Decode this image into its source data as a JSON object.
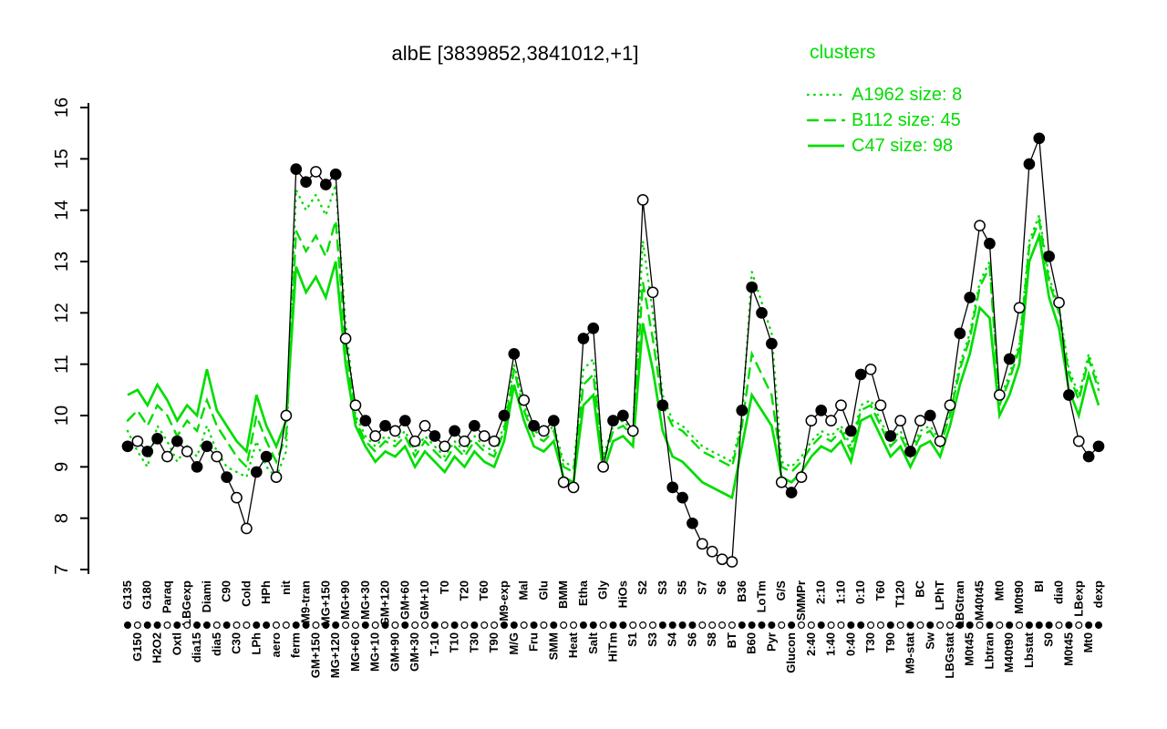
{
  "title": "albE [3839852,3841012,+1]",
  "colors": {
    "cluster_green": "#00dd00",
    "gene_black": "#000000",
    "background": "#ffffff"
  },
  "legend": {
    "title": "clusters",
    "position": "top-right",
    "entries": [
      {
        "label": "A1962 size: 8",
        "style": "dotted"
      },
      {
        "label": "B112 size: 45",
        "style": "dashed"
      },
      {
        "label": "C47 size: 98",
        "style": "solid"
      }
    ]
  },
  "chart_data": {
    "type": "line",
    "title": "albE [3839852,3841012,+1]",
    "xlabel": "",
    "ylabel": "",
    "ylim": [
      7,
      16
    ],
    "yticks": [
      7,
      8,
      9,
      10,
      11,
      12,
      13,
      14,
      15,
      16
    ],
    "grid": false,
    "legend_position": "top-right",
    "categories": [
      "G135",
      "G150",
      "G180",
      "H2O2",
      "Paraq",
      "Oxtl",
      "LBGexp",
      "dia15",
      "Diami",
      "dia5",
      "C90",
      "C30",
      "Cold",
      "LPh",
      "HPh",
      "aero",
      "nit",
      "ferm",
      "M9-tran",
      "GM+150",
      "MG+150",
      "MG+120",
      "MG+90",
      "MG+60",
      "MG+30",
      "MG+10",
      "GM+120",
      "GM+90",
      "GM+60",
      "GM+30",
      "GM+10",
      "T-10",
      "T0",
      "T10",
      "T20",
      "T30",
      "T60",
      "T90",
      "M9-exp",
      "M/G",
      "Mal",
      "Fru",
      "Glu",
      "SMM",
      "BMM",
      "Heat",
      "Etha",
      "Salt",
      "Gly",
      "HiTm",
      "HiOs",
      "S1",
      "S2",
      "S3",
      "S3",
      "S4",
      "S5",
      "S6",
      "S7",
      "S8",
      "S6",
      "BT",
      "B36",
      "B60",
      "LoTm",
      "Pyr",
      "G/S",
      "Glucon",
      "SMMPr",
      "2:40",
      "2:10",
      "1:40",
      "1:10",
      "0:40",
      "0:10",
      "T30",
      "T60",
      "T90",
      "T120",
      "M9-stat",
      "BC",
      "Sw",
      "LPhT",
      "LBGstat",
      "LBGtran",
      "M0t45",
      "M40t45",
      "Lbtran",
      "Mt0",
      "M40t90",
      "M0t90",
      "Lbstat",
      "BI",
      "S0",
      "dia0",
      "M0t45",
      "LBexp",
      "Mt0",
      "dexp"
    ],
    "marker_filled": [
      1,
      0,
      1,
      1,
      0,
      1,
      0,
      1,
      1,
      0,
      1,
      0,
      0,
      1,
      1,
      0,
      0,
      1,
      1,
      0,
      1,
      1,
      0,
      0,
      1,
      0,
      1,
      0,
      1,
      0,
      0,
      1,
      0,
      1,
      0,
      1,
      0,
      0,
      1,
      1,
      0,
      1,
      0,
      1,
      0,
      0,
      1,
      1,
      0,
      1,
      1,
      0,
      0,
      0,
      1,
      1,
      1,
      1,
      0,
      0,
      0,
      0,
      1,
      1,
      1,
      1,
      0,
      1,
      0,
      0,
      1,
      0,
      0,
      1,
      1,
      0,
      0,
      1,
      0,
      1,
      0,
      1,
      0,
      0,
      1,
      1,
      0,
      1,
      0,
      1,
      0,
      1,
      1,
      1,
      0,
      1,
      0,
      1,
      1
    ],
    "series": [
      {
        "name": "albE",
        "role": "gene",
        "color": "#000000",
        "style": "solid",
        "line_width": 1.3,
        "markers": true,
        "values": [
          9.4,
          9.5,
          9.3,
          9.55,
          9.2,
          9.5,
          9.3,
          9.0,
          9.4,
          9.2,
          8.8,
          8.4,
          7.8,
          8.9,
          9.2,
          8.8,
          10.0,
          14.8,
          14.55,
          14.75,
          14.5,
          14.7,
          11.5,
          10.2,
          9.9,
          9.6,
          9.8,
          9.7,
          9.9,
          9.5,
          9.8,
          9.6,
          9.4,
          9.7,
          9.5,
          9.8,
          9.6,
          9.5,
          10.0,
          11.2,
          10.3,
          9.8,
          9.7,
          9.9,
          8.7,
          8.6,
          11.5,
          11.7,
          9.0,
          9.9,
          10.0,
          9.7,
          14.2,
          12.4,
          10.2,
          8.6,
          8.4,
          7.9,
          7.5,
          7.35,
          7.2,
          7.15,
          10.1,
          12.5,
          12.0,
          11.4,
          8.7,
          8.5,
          8.8,
          9.9,
          10.1,
          9.9,
          10.2,
          9.7,
          10.8,
          10.9,
          10.2,
          9.6,
          9.9,
          9.3,
          9.9,
          10.0,
          9.5,
          10.2,
          11.6,
          12.3,
          13.7,
          13.35,
          10.4,
          11.1,
          12.1,
          14.9,
          15.4,
          13.1,
          12.2,
          10.4,
          9.5,
          9.2,
          9.4
        ]
      },
      {
        "name": "A1962",
        "size": 8,
        "color": "#00dd00",
        "style": "dotted",
        "line_width": 2.4,
        "markers": false,
        "values": [
          9.7,
          9.3,
          9.0,
          9.8,
          9.5,
          9.1,
          9.4,
          9.2,
          9.8,
          9.3,
          9.0,
          8.9,
          8.8,
          9.5,
          9.0,
          8.8,
          9.3,
          14.4,
          14.0,
          14.3,
          13.9,
          14.5,
          11.8,
          10.0,
          9.6,
          9.4,
          9.6,
          9.5,
          9.7,
          9.3,
          9.6,
          9.4,
          9.2,
          9.5,
          9.3,
          9.6,
          9.4,
          9.3,
          9.8,
          11.0,
          10.2,
          9.7,
          9.6,
          9.8,
          9.1,
          9.0,
          10.9,
          11.1,
          9.2,
          9.8,
          9.9,
          9.7,
          13.4,
          12.0,
          10.4,
          9.9,
          9.8,
          9.6,
          9.4,
          9.3,
          9.2,
          9.1,
          9.9,
          12.8,
          12.2,
          11.6,
          9.1,
          9.0,
          9.2,
          9.5,
          9.7,
          9.6,
          9.8,
          9.4,
          10.2,
          10.3,
          9.9,
          9.5,
          9.7,
          9.3,
          9.7,
          9.8,
          9.5,
          10.1,
          11.0,
          11.6,
          12.6,
          13.0,
          10.3,
          10.8,
          11.4,
          13.4,
          13.9,
          12.7,
          12.1,
          10.9,
          10.4,
          11.2,
          10.6
        ]
      },
      {
        "name": "B112",
        "size": 45,
        "color": "#00dd00",
        "style": "dashed",
        "line_width": 2.4,
        "markers": false,
        "values": [
          9.9,
          10.1,
          9.8,
          10.2,
          10.0,
          9.6,
          9.9,
          9.7,
          10.3,
          9.8,
          9.5,
          9.2,
          9.0,
          10.0,
          9.5,
          9.1,
          9.6,
          13.6,
          13.2,
          13.5,
          13.1,
          13.8,
          11.4,
          9.9,
          9.5,
          9.3,
          9.5,
          9.4,
          9.6,
          9.2,
          9.5,
          9.3,
          9.1,
          9.4,
          9.2,
          9.5,
          9.3,
          9.2,
          9.7,
          10.9,
          10.1,
          9.6,
          9.5,
          9.7,
          9.0,
          8.9,
          10.6,
          10.8,
          9.1,
          9.7,
          9.8,
          9.6,
          12.6,
          11.5,
          10.2,
          9.8,
          9.7,
          9.5,
          9.3,
          9.2,
          9.1,
          9.0,
          9.8,
          11.2,
          10.8,
          10.4,
          9.0,
          8.9,
          9.1,
          9.4,
          9.6,
          9.5,
          9.7,
          9.3,
          10.1,
          10.2,
          9.8,
          9.4,
          9.6,
          9.2,
          9.6,
          9.7,
          9.4,
          10.0,
          10.9,
          11.5,
          12.5,
          12.9,
          10.2,
          10.7,
          11.3,
          13.3,
          13.8,
          12.6,
          12.0,
          10.8,
          10.3,
          11.1,
          10.5
        ]
      },
      {
        "name": "C47",
        "size": 98,
        "color": "#00dd00",
        "style": "solid",
        "line_width": 2.7,
        "markers": false,
        "values": [
          10.4,
          10.5,
          10.2,
          10.6,
          10.3,
          9.9,
          10.2,
          10.0,
          10.9,
          10.1,
          9.8,
          9.5,
          9.3,
          10.4,
          9.8,
          9.4,
          9.9,
          12.9,
          12.4,
          12.7,
          12.3,
          13.0,
          11.0,
          9.8,
          9.4,
          9.1,
          9.3,
          9.2,
          9.4,
          9.0,
          9.3,
          9.1,
          8.9,
          9.2,
          9.0,
          9.3,
          9.1,
          9.0,
          9.5,
          10.6,
          9.9,
          9.4,
          9.3,
          9.5,
          8.8,
          8.7,
          10.2,
          10.4,
          8.9,
          9.5,
          9.6,
          9.4,
          11.8,
          10.9,
          9.7,
          9.2,
          9.1,
          8.9,
          8.7,
          8.6,
          8.5,
          8.4,
          9.4,
          10.4,
          10.1,
          9.8,
          8.8,
          8.7,
          8.9,
          9.2,
          9.4,
          9.3,
          9.5,
          9.1,
          9.9,
          10.0,
          9.6,
          9.2,
          9.4,
          9.0,
          9.4,
          9.5,
          9.2,
          9.8,
          10.6,
          11.2,
          12.1,
          11.9,
          10.0,
          10.4,
          11.0,
          13.0,
          13.5,
          12.3,
          11.7,
          10.5,
          10.0,
          10.8,
          10.2
        ]
      }
    ]
  }
}
